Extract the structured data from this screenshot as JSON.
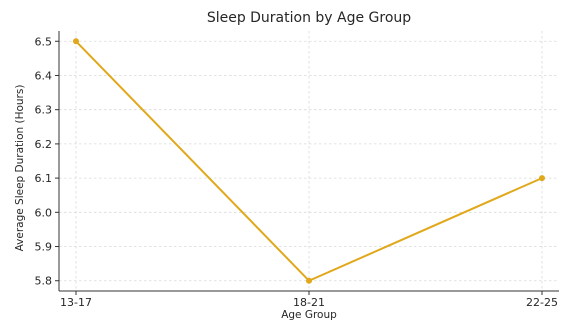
{
  "chart_data": {
    "type": "line",
    "title": "Sleep Duration by Age Group",
    "xlabel": "Age Group",
    "ylabel": "Average Sleep Duration (Hours)",
    "categories": [
      "13-17",
      "18-21",
      "22-25"
    ],
    "series": [
      {
        "values": [
          6.5,
          5.8,
          6.1
        ],
        "color": "#e0a81a",
        "marker": "circle"
      }
    ],
    "ylim": [
      5.77,
      6.53
    ],
    "yticks": [
      5.8,
      5.9,
      6.0,
      6.1,
      6.2,
      6.3,
      6.4,
      6.5
    ],
    "ytick_labels": [
      "5.8",
      "5.9",
      "6.0",
      "6.1",
      "6.2",
      "6.3",
      "6.4",
      "6.5"
    ],
    "grid": true,
    "legend": "none"
  }
}
